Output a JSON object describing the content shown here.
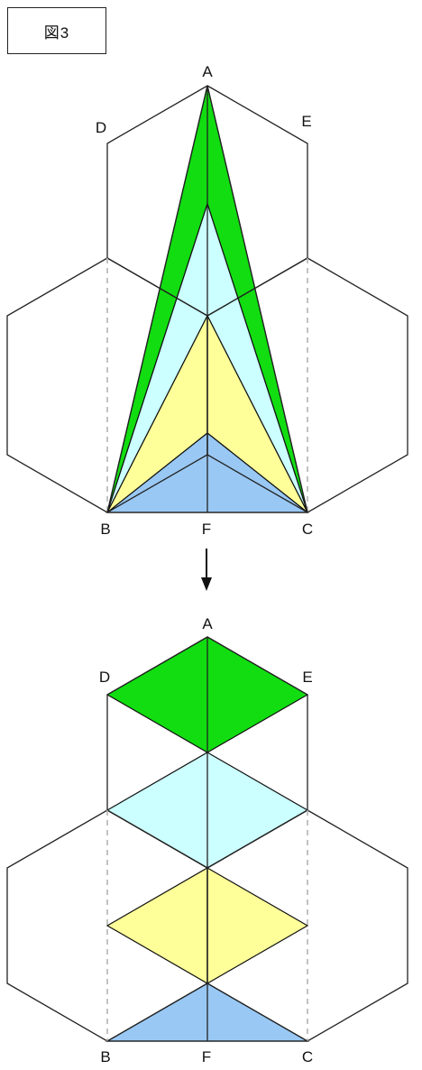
{
  "figure": {
    "label": "図3"
  },
  "colors": {
    "green": "#11dd11",
    "cyan": "#ccffff",
    "yellow": "#ffff99",
    "blue": "#99c8f4",
    "line": "#222222",
    "dashed": "#b4b4b4"
  },
  "top_diagram": {
    "points": {
      "A": "A",
      "B": "B",
      "C": "C",
      "D": "D",
      "E": "E",
      "F": "F"
    }
  },
  "bottom_diagram": {
    "points": {
      "A": "A",
      "B": "B",
      "C": "C",
      "D": "D",
      "E": "E",
      "F": "F"
    }
  },
  "arrow": {
    "icon": "down-arrow-icon"
  }
}
